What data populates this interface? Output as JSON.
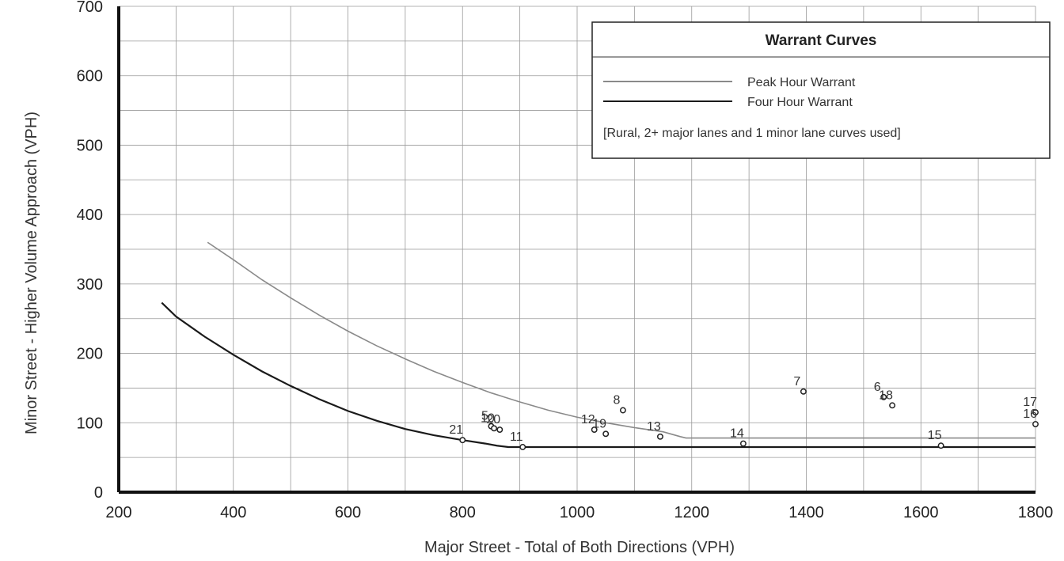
{
  "chart_data": {
    "type": "line",
    "xlabel": "Major Street - Total of Both Directions (VPH)",
    "ylabel": "Minor Street - Higher Volume Approach (VPH)",
    "xlim": [
      200,
      1800
    ],
    "ylim": [
      0,
      700
    ],
    "x_ticks": [
      "200",
      "400",
      "600",
      "800",
      "1000",
      "1200",
      "1400",
      "1600",
      "1800"
    ],
    "y_ticks": [
      "0",
      "100",
      "200",
      "300",
      "400",
      "500",
      "600",
      "700"
    ],
    "grid": true,
    "legend": {
      "title": "Warrant Curves",
      "entries": [
        "Peak Hour Warrant",
        "Four Hour Warrant"
      ],
      "note": "[Rural,  2+ major lanes and 1 minor lane curves used]",
      "placement": "top-right"
    },
    "series": [
      {
        "name": "Peak Hour Warrant",
        "color": "#8a8a8a",
        "x": [
          355,
          400,
          450,
          500,
          550,
          600,
          650,
          700,
          750,
          800,
          850,
          900,
          950,
          1000,
          1050,
          1100,
          1150,
          1180,
          1190,
          1800
        ],
        "y": [
          360,
          335,
          306,
          280,
          255,
          232,
          211,
          192,
          174,
          158,
          143,
          130,
          118,
          108,
          100,
          93,
          87,
          80,
          78,
          78
        ]
      },
      {
        "name": "Four Hour Warrant",
        "color": "#1a1a1a",
        "x": [
          275,
          300,
          350,
          400,
          450,
          500,
          550,
          600,
          650,
          700,
          750,
          800,
          840,
          860,
          880,
          1800
        ],
        "y": [
          273,
          253,
          224,
          198,
          174,
          153,
          134,
          117,
          103,
          91,
          82,
          75,
          70,
          67,
          65,
          65
        ]
      }
    ],
    "points": [
      {
        "label": "21",
        "x": 800,
        "y": 75
      },
      {
        "label": "5",
        "x": 850,
        "y": 95
      },
      {
        "label": "10",
        "x": 855,
        "y": 92
      },
      {
        "label": "20",
        "x": 865,
        "y": 90
      },
      {
        "label": "11",
        "x": 905,
        "y": 65
      },
      {
        "label": "12",
        "x": 1030,
        "y": 90
      },
      {
        "label": "19",
        "x": 1050,
        "y": 84
      },
      {
        "label": "8",
        "x": 1080,
        "y": 118
      },
      {
        "label": "13",
        "x": 1145,
        "y": 80
      },
      {
        "label": "14",
        "x": 1290,
        "y": 70
      },
      {
        "label": "7",
        "x": 1395,
        "y": 145
      },
      {
        "label": "6",
        "x": 1535,
        "y": 137
      },
      {
        "label": "18",
        "x": 1550,
        "y": 125
      },
      {
        "label": "15",
        "x": 1635,
        "y": 67
      },
      {
        "label": "17",
        "x": 1800,
        "y": 115
      },
      {
        "label": "16",
        "x": 1800,
        "y": 98
      }
    ]
  }
}
